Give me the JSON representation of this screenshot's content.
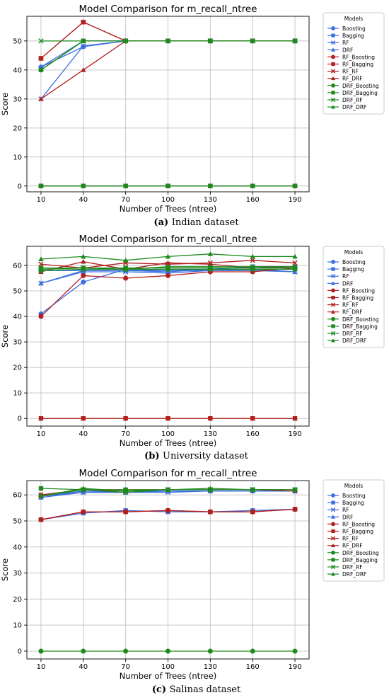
{
  "x_ticks": [
    10,
    40,
    70,
    100,
    130,
    160,
    190
  ],
  "legend_title": "Models",
  "series_styles": [
    {
      "name": "Boosting",
      "color": "#3a6fe0",
      "marker": "circle"
    },
    {
      "name": "Bagging",
      "color": "#3a6fe0",
      "marker": "square"
    },
    {
      "name": "RF",
      "color": "#3a6fe0",
      "marker": "x"
    },
    {
      "name": "DRF",
      "color": "#3a6fe0",
      "marker": "triangle"
    },
    {
      "name": "RF_Boosting",
      "color": "#b21f1f",
      "marker": "circle"
    },
    {
      "name": "RF_Bagging",
      "color": "#b21f1f",
      "marker": "square"
    },
    {
      "name": "RF_RF",
      "color": "#b21f1f",
      "marker": "x"
    },
    {
      "name": "RF_DRF",
      "color": "#b21f1f",
      "marker": "triangle"
    },
    {
      "name": "DRF_Boosting",
      "color": "#1e8a1e",
      "marker": "circle"
    },
    {
      "name": "DRF_Bagging",
      "color": "#1e8a1e",
      "marker": "square"
    },
    {
      "name": "DRF_RF",
      "color": "#1e8a1e",
      "marker": "x"
    },
    {
      "name": "DRF_DRF",
      "color": "#1e8a1e",
      "marker": "triangle"
    }
  ],
  "chart_data": [
    {
      "type": "line",
      "title": "Model Comparison for m_recall_ntree",
      "xlabel": "Number of Trees (ntree)",
      "ylabel": "Score",
      "caption_label": "(a)",
      "caption_text": "Indian dataset",
      "x": [
        10,
        40,
        70,
        100,
        130,
        160,
        190
      ],
      "xlim": [
        0,
        200
      ],
      "ylim": [
        -2,
        58.5
      ],
      "yticks": [
        0,
        10,
        20,
        30,
        40,
        50
      ],
      "grid": true,
      "legend": "outside-right",
      "series": [
        {
          "name": "Boosting",
          "values": [
            41,
            48,
            50,
            50,
            50,
            50,
            50
          ]
        },
        {
          "name": "Bagging",
          "values": [
            0,
            0,
            0,
            0,
            0,
            0,
            0
          ]
        },
        {
          "name": "RF",
          "values": [
            30,
            48.3,
            50,
            50,
            50,
            50,
            50
          ]
        },
        {
          "name": "DRF",
          "values": [
            41,
            50,
            50,
            50,
            50,
            50,
            50
          ]
        },
        {
          "name": "RF_Boosting",
          "values": [
            44,
            56.5,
            50,
            50,
            50,
            50,
            50
          ]
        },
        {
          "name": "RF_Bagging",
          "values": [
            0,
            0,
            0,
            0,
            0,
            0,
            0
          ]
        },
        {
          "name": "RF_RF",
          "values": [
            44,
            56.5,
            50,
            50,
            50,
            50,
            50
          ]
        },
        {
          "name": "RF_DRF",
          "values": [
            30,
            40,
            50,
            50,
            50,
            50,
            50
          ]
        },
        {
          "name": "DRF_Boosting",
          "values": [
            40,
            50,
            50,
            50,
            50,
            50,
            50
          ]
        },
        {
          "name": "DRF_Bagging",
          "values": [
            0,
            0,
            0,
            0,
            0,
            0,
            0
          ]
        },
        {
          "name": "DRF_RF",
          "values": [
            50,
            50,
            50,
            50,
            50,
            50,
            50
          ]
        },
        {
          "name": "DRF_DRF",
          "values": [
            40,
            50,
            50,
            50,
            50,
            50,
            50
          ]
        }
      ]
    },
    {
      "type": "line",
      "title": "Model Comparison for m_recall_ntree",
      "xlabel": "Number of Trees (ntree)",
      "ylabel": "Score",
      "caption_label": "(b)",
      "caption_text": "University dataset",
      "x": [
        10,
        40,
        70,
        100,
        130,
        160,
        190
      ],
      "xlim": [
        0,
        200
      ],
      "ylim": [
        -3,
        67.5
      ],
      "yticks": [
        0,
        10,
        20,
        30,
        40,
        50,
        60
      ],
      "grid": true,
      "legend": "outside-right",
      "series": [
        {
          "name": "Boosting",
          "values": [
            41,
            53.5,
            58.5,
            58,
            58.5,
            59.5,
            59.5
          ]
        },
        {
          "name": "Bagging",
          "values": [
            58,
            58,
            58,
            58,
            58,
            58.5,
            58.5
          ]
        },
        {
          "name": "RF",
          "values": [
            53,
            57.5,
            57.5,
            57,
            58,
            58,
            57.5
          ]
        },
        {
          "name": "DRF",
          "values": [
            53,
            58,
            58,
            57.5,
            58.5,
            58.5,
            57.5
          ]
        },
        {
          "name": "RF_Boosting",
          "values": [
            40,
            56,
            55,
            56,
            57.5,
            57.5,
            59
          ]
        },
        {
          "name": "RF_Bagging",
          "values": [
            0,
            0,
            0,
            0,
            0,
            0,
            0
          ]
        },
        {
          "name": "RF_RF",
          "values": [
            60.5,
            59,
            61,
            60.5,
            61,
            62,
            61
          ]
        },
        {
          "name": "RF_DRF",
          "values": [
            57.5,
            61.5,
            58.5,
            61,
            60.5,
            59,
            59.5
          ]
        },
        {
          "name": "DRF_Boosting",
          "values": [
            58,
            58.5,
            58.5,
            58.5,
            58.5,
            58.5,
            58.5
          ]
        },
        {
          "name": "DRF_Bagging",
          "values": [
            59,
            59,
            59,
            59,
            59,
            59,
            59
          ]
        },
        {
          "name": "DRF_RF",
          "values": [
            58.5,
            59,
            58.5,
            59.5,
            59.5,
            59.5,
            59.5
          ]
        },
        {
          "name": "DRF_DRF",
          "values": [
            62.5,
            63.5,
            62,
            63.5,
            64.5,
            63.5,
            63.5
          ]
        }
      ]
    },
    {
      "type": "line",
      "title": "Model Comparison for m_recall_ntree",
      "xlabel": "Number of Trees (ntree)",
      "ylabel": "Score",
      "caption_label": "(c)",
      "caption_text": "Salinas dataset",
      "x": [
        10,
        40,
        70,
        100,
        130,
        160,
        190
      ],
      "xlim": [
        0,
        200
      ],
      "ylim": [
        -3,
        65.5
      ],
      "yticks": [
        0,
        10,
        20,
        30,
        40,
        50,
        60
      ],
      "grid": true,
      "legend": "outside-right",
      "series": [
        {
          "name": "Boosting",
          "values": [
            59.5,
            61.5,
            61,
            61.5,
            61.5,
            61.5,
            61.5
          ]
        },
        {
          "name": "Bagging",
          "values": [
            50.5,
            53,
            54,
            53.5,
            53.5,
            54,
            54.5
          ]
        },
        {
          "name": "RF",
          "values": [
            59.5,
            61,
            61,
            61,
            61.5,
            61.5,
            61.5
          ]
        },
        {
          "name": "DRF",
          "values": [
            59,
            61,
            61,
            61.5,
            61.5,
            61.5,
            61.5
          ]
        },
        {
          "name": "RF_Boosting",
          "values": [
            50.5,
            53.5,
            53.5,
            54,
            53.5,
            53.5,
            54.5
          ]
        },
        {
          "name": "RF_Bagging",
          "values": [
            50.5,
            53.5,
            53.5,
            54,
            53.5,
            53.5,
            54.5
          ]
        },
        {
          "name": "RF_RF",
          "values": [
            60,
            62,
            61.5,
            62,
            62,
            62,
            61.5
          ]
        },
        {
          "name": "RF_DRF",
          "values": [
            60,
            62,
            62,
            62,
            62,
            62,
            62
          ]
        },
        {
          "name": "DRF_Boosting",
          "values": [
            0,
            0,
            0,
            0,
            0,
            0,
            0
          ]
        },
        {
          "name": "DRF_Bagging",
          "values": [
            62.5,
            62,
            62,
            62,
            62,
            62,
            62
          ]
        },
        {
          "name": "DRF_RF",
          "values": [
            59.5,
            62,
            61,
            62,
            62,
            62,
            62
          ]
        },
        {
          "name": "DRF_DRF",
          "values": [
            59.5,
            62.5,
            61.5,
            62,
            62.5,
            62,
            62
          ]
        }
      ]
    }
  ]
}
